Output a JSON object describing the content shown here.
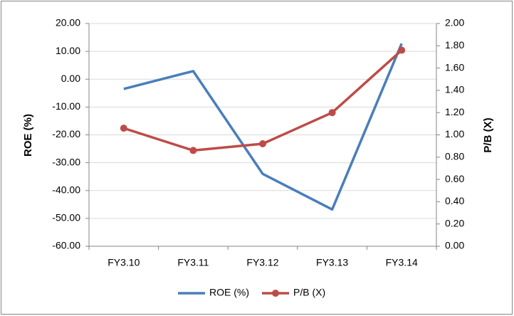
{
  "chart_data": {
    "type": "line",
    "categories": [
      "FY3.10",
      "FY3.11",
      "FY3.12",
      "FY3.13",
      "FY3.14"
    ],
    "series": [
      {
        "name": "ROE (%)",
        "color": "#4a7ebb",
        "values": [
          -3.5,
          2.9,
          -34.0,
          -46.8,
          12.8
        ],
        "axis": "y"
      },
      {
        "name": "P/B (X)",
        "color": "#be4b48",
        "values": [
          1.06,
          0.86,
          0.92,
          1.2,
          1.76
        ],
        "axis": "y2",
        "markers": true
      }
    ],
    "y_label": "ROE (%)",
    "y2_label": "P/B (X)",
    "ylim": [
      -60,
      20
    ],
    "yticks": [
      {
        "value": -60,
        "label": "-60.00"
      },
      {
        "value": -50,
        "label": "-50.00"
      },
      {
        "value": -40,
        "label": "-40.00"
      },
      {
        "value": -30,
        "label": "-30.00"
      },
      {
        "value": -20,
        "label": "-20.00"
      },
      {
        "value": -10,
        "label": "-10.00"
      },
      {
        "value": 0,
        "label": "0.00"
      },
      {
        "value": 10,
        "label": "10.00"
      },
      {
        "value": 20,
        "label": "20.00"
      }
    ],
    "y2lim": [
      0,
      2
    ],
    "y2ticks": [
      {
        "value": 0,
        "label": "0.00"
      },
      {
        "value": 0.2,
        "label": "0.20"
      },
      {
        "value": 0.4,
        "label": "0.40"
      },
      {
        "value": 0.6,
        "label": "0.60"
      },
      {
        "value": 0.8,
        "label": "0.80"
      },
      {
        "value": 1.0,
        "label": "1.00"
      },
      {
        "value": 1.2,
        "label": "1.20"
      },
      {
        "value": 1.4,
        "label": "1.40"
      },
      {
        "value": 1.6,
        "label": "1.60"
      },
      {
        "value": 1.8,
        "label": "1.80"
      },
      {
        "value": 2.0,
        "label": "2.00"
      }
    ],
    "grid": true,
    "legend": "bottom"
  }
}
